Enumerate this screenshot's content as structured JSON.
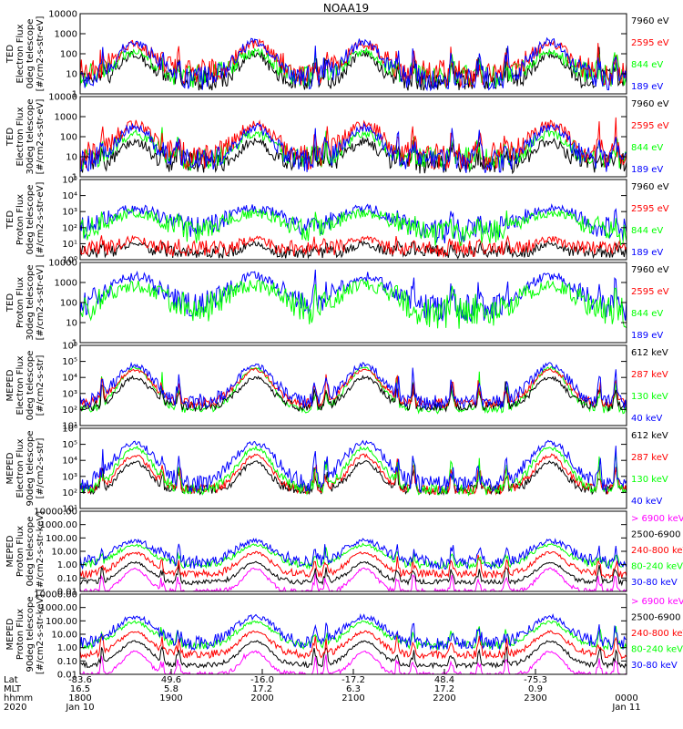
{
  "title": "NOAA19",
  "colors": {
    "blue": "#0000ff",
    "red": "#ff0000",
    "green": "#00ff00",
    "black": "#000000",
    "magenta": "#ff00ff"
  },
  "chart_data": [
    {
      "type": "scatter",
      "id": "ted-e-0",
      "ylabel": [
        "TED",
        "Electron Flux",
        "0deg telescope",
        "[#/cm2-s-str-eV]"
      ],
      "yscale": "log",
      "ylim": [
        1,
        10000
      ],
      "yticks": [
        "10000",
        "1000",
        "100",
        "10",
        "1"
      ],
      "legend": [
        {
          "label": "7960 eV",
          "color": "#000000"
        },
        {
          "label": "2595 eV",
          "color": "#ff0000"
        },
        {
          "label": "844 eV",
          "color": "#00ff00"
        },
        {
          "label": "189 eV",
          "color": "#0000ff"
        }
      ],
      "series": [
        {
          "name": "7960 eV",
          "color": "#000000",
          "peak": 100,
          "floor": 5,
          "widthScale": 0.8,
          "noise": 0.55
        },
        {
          "name": "844 eV",
          "color": "#00ff00",
          "peak": 120,
          "floor": 8,
          "widthScale": 1.0,
          "noise": 0.6
        },
        {
          "name": "2595 eV",
          "color": "#ff0000",
          "peak": 300,
          "floor": 10,
          "widthScale": 1.1,
          "noise": 0.7
        },
        {
          "name": "189 eV",
          "color": "#0000ff",
          "peak": 400,
          "floor": 6,
          "widthScale": 1.0,
          "noise": 0.6
        }
      ]
    },
    {
      "type": "scatter",
      "id": "ted-e-30",
      "ylabel": [
        "TED",
        "Electron Flux",
        "30deg telescope",
        "[#/cm2-s-str-eV]"
      ],
      "yscale": "log",
      "ylim": [
        1,
        10000
      ],
      "yticks": [
        "10000",
        "1000",
        "100",
        "10",
        "1"
      ],
      "legend": [
        {
          "label": "7960 eV",
          "color": "#000000"
        },
        {
          "label": "2595 eV",
          "color": "#ff0000"
        },
        {
          "label": "844 eV",
          "color": "#00ff00"
        },
        {
          "label": "189 eV",
          "color": "#0000ff"
        }
      ],
      "series": [
        {
          "name": "7960 eV",
          "color": "#000000",
          "peak": 60,
          "floor": 5,
          "widthScale": 0.8,
          "noise": 0.55
        },
        {
          "name": "844 eV",
          "color": "#00ff00",
          "peak": 150,
          "floor": 8,
          "widthScale": 1.0,
          "noise": 0.6
        },
        {
          "name": "2595 eV",
          "color": "#ff0000",
          "peak": 400,
          "floor": 10,
          "widthScale": 1.1,
          "noise": 0.7
        },
        {
          "name": "189 eV",
          "color": "#0000ff",
          "peak": 300,
          "floor": 6,
          "widthScale": 1.0,
          "noise": 0.6
        }
      ]
    },
    {
      "type": "scatter",
      "id": "ted-p-0",
      "ylabel": [
        "TED",
        "Proton Flux",
        "0deg telescope",
        "[#/cm2-s-str-eV]"
      ],
      "yscale": "log",
      "ylim": [
        1,
        100000
      ],
      "yticks": [
        "10⁵",
        "10⁴",
        "10³",
        "10²",
        "10¹",
        "10⁰"
      ],
      "legend": [
        {
          "label": "7960 eV",
          "color": "#000000"
        },
        {
          "label": "2595 eV",
          "color": "#ff0000"
        },
        {
          "label": "844 eV",
          "color": "#00ff00"
        },
        {
          "label": "189 eV",
          "color": "#0000ff"
        }
      ],
      "series": [
        {
          "name": "7960 eV",
          "color": "#000000",
          "peak": 10,
          "floor": 3,
          "widthScale": 0.6,
          "noise": 0.4
        },
        {
          "name": "2595 eV",
          "color": "#ff0000",
          "peak": 20,
          "floor": 5,
          "widthScale": 0.7,
          "noise": 0.5
        },
        {
          "name": "189 eV",
          "color": "#0000ff",
          "peak": 1500,
          "floor": 60,
          "widthScale": 1.6,
          "noise": 0.8
        },
        {
          "name": "844 eV",
          "color": "#00ff00",
          "peak": 800,
          "floor": 40,
          "widthScale": 1.6,
          "noise": 0.8
        }
      ]
    },
    {
      "type": "scatter",
      "id": "ted-p-30",
      "ylabel": [
        "TED",
        "Proton Flux",
        "30deg telescope",
        "[#/cm2-s-str-eV]"
      ],
      "yscale": "log",
      "ylim": [
        1,
        10000
      ],
      "yticks": [
        "10000",
        "1000",
        "100",
        "10",
        "1"
      ],
      "legend": [
        {
          "label": "7960 eV",
          "color": "#000000"
        },
        {
          "label": "2595 eV",
          "color": "#ff0000"
        },
        {
          "label": "844 eV",
          "color": "#00ff00"
        },
        {
          "label": "189 eV",
          "color": "#0000ff"
        }
      ],
      "series": [
        {
          "name": "189 eV",
          "color": "#0000ff",
          "peak": 2000,
          "floor": 50,
          "widthScale": 1.5,
          "noise": 0.7
        },
        {
          "name": "844 eV",
          "color": "#00ff00",
          "peak": 700,
          "floor": 30,
          "widthScale": 1.6,
          "noise": 0.9
        }
      ]
    },
    {
      "type": "scatter",
      "id": "meped-e-0",
      "ylabel": [
        "MEPED",
        "Electron Flux",
        "0deg telescope",
        "[#/cm2-s-str]"
      ],
      "yscale": "log",
      "ylim": [
        10,
        1000000
      ],
      "yticks": [
        "10⁶",
        "10⁵",
        "10⁴",
        "10³",
        "10²",
        "10¹"
      ],
      "legend": [
        {
          "label": "612 keV",
          "color": "#000000"
        },
        {
          "label": "287 keV",
          "color": "#ff0000"
        },
        {
          "label": "130 keV",
          "color": "#00ff00"
        },
        {
          "label": "40 keV",
          "color": "#0000ff"
        }
      ],
      "series": [
        {
          "name": "130 keV",
          "color": "#00ff00",
          "peak": 40000,
          "floor": 100,
          "widthScale": 0.95,
          "noise": 0.25
        },
        {
          "name": "612 keV",
          "color": "#000000",
          "peak": 10000,
          "floor": 150,
          "widthScale": 0.9,
          "noise": 0.3
        },
        {
          "name": "287 keV",
          "color": "#ff0000",
          "peak": 30000,
          "floor": 250,
          "widthScale": 1.0,
          "noise": 0.3
        },
        {
          "name": "40 keV",
          "color": "#0000ff",
          "peak": 60000,
          "floor": 300,
          "widthScale": 1.05,
          "noise": 0.5
        }
      ]
    },
    {
      "type": "scatter",
      "id": "meped-e-90",
      "ylabel": [
        "MEPED",
        "Electron Flux",
        "90deg telescope",
        "[#/cm2-s-str]"
      ],
      "yscale": "log",
      "ylim": [
        10,
        1000000
      ],
      "yticks": [
        "10⁶",
        "10⁵",
        "10⁴",
        "10³",
        "10²",
        "10¹"
      ],
      "legend": [
        {
          "label": "612 keV",
          "color": "#000000"
        },
        {
          "label": "287 keV",
          "color": "#ff0000"
        },
        {
          "label": "130 keV",
          "color": "#00ff00"
        },
        {
          "label": "40 keV",
          "color": "#0000ff"
        }
      ],
      "series": [
        {
          "name": "612 keV",
          "color": "#000000",
          "peak": 8000,
          "floor": 150,
          "widthScale": 0.8,
          "noise": 0.3
        },
        {
          "name": "287 keV",
          "color": "#ff0000",
          "peak": 20000,
          "floor": 150,
          "widthScale": 0.9,
          "noise": 0.3
        },
        {
          "name": "130 keV",
          "color": "#00ff00",
          "peak": 60000,
          "floor": 150,
          "widthScale": 1.0,
          "noise": 0.35
        },
        {
          "name": "40 keV",
          "color": "#0000ff",
          "peak": 120000,
          "floor": 300,
          "widthScale": 1.2,
          "noise": 0.55
        }
      ]
    },
    {
      "type": "scatter",
      "id": "meped-p-0",
      "ylabel": [
        "MEPED",
        "Proton Flux",
        "0deg telescope",
        "[#/cm2-s-str-keV]"
      ],
      "yscale": "log",
      "ylim": [
        0.01,
        10000
      ],
      "yticks": [
        "10000.00",
        "1000.00",
        "100.00",
        "10.00",
        "1.00",
        "0.10",
        "0.01"
      ],
      "legend": [
        {
          "label": "> 6900 keV",
          "color": "#ff00ff"
        },
        {
          "label": "2500-6900",
          "color": "#000000"
        },
        {
          "label": "240-800 keV",
          "color": "#ff0000"
        },
        {
          "label": "80-240 keV",
          "color": "#00ff00"
        },
        {
          "label": "30-80 keV",
          "color": "#0000ff"
        }
      ],
      "series": [
        {
          "name": "> 6900 keV",
          "color": "#ff00ff",
          "peak": 0.5,
          "floor": 0.01,
          "widthScale": 0.7,
          "noise": 0.2
        },
        {
          "name": "2500-6900",
          "color": "#000000",
          "peak": 1.5,
          "floor": 0.05,
          "widthScale": 0.8,
          "noise": 0.2
        },
        {
          "name": "240-800 keV",
          "color": "#ff0000",
          "peak": 8,
          "floor": 0.2,
          "widthScale": 0.9,
          "noise": 0.3
        },
        {
          "name": "80-240 keV",
          "color": "#00ff00",
          "peak": 30,
          "floor": 1,
          "widthScale": 1.0,
          "noise": 0.3
        },
        {
          "name": "30-80 keV",
          "color": "#0000ff",
          "peak": 60,
          "floor": 1.5,
          "widthScale": 1.1,
          "noise": 0.5
        }
      ]
    },
    {
      "type": "scatter",
      "id": "meped-p-90",
      "ylabel": [
        "MEPED",
        "Proton Flux",
        "90deg telescope",
        "[#/cm2-s-str-keV]"
      ],
      "yscale": "log",
      "ylim": [
        0.01,
        10000
      ],
      "yticks": [
        "10000.00",
        "1000.00",
        "100.00",
        "10.00",
        "1.00",
        "0.10",
        "0.01"
      ],
      "legend": [
        {
          "label": "> 6900 keV",
          "color": "#ff00ff"
        },
        {
          "label": "2500-6900",
          "color": "#000000"
        },
        {
          "label": "240-800 keV",
          "color": "#ff0000"
        },
        {
          "label": "80-240 keV",
          "color": "#00ff00"
        },
        {
          "label": "30-80 keV",
          "color": "#0000ff"
        }
      ],
      "series": [
        {
          "name": "> 6900 keV",
          "color": "#ff00ff",
          "peak": 0.5,
          "floor": 0.01,
          "widthScale": 0.7,
          "noise": 0.2
        },
        {
          "name": "2500-6900",
          "color": "#000000",
          "peak": 3,
          "floor": 0.05,
          "widthScale": 0.85,
          "noise": 0.2
        },
        {
          "name": "240-800 keV",
          "color": "#ff0000",
          "peak": 15,
          "floor": 0.3,
          "widthScale": 0.9,
          "noise": 0.3
        },
        {
          "name": "80-240 keV",
          "color": "#00ff00",
          "peak": 80,
          "floor": 1.5,
          "widthScale": 1.0,
          "noise": 0.3
        },
        {
          "name": "30-80 keV",
          "color": "#0000ff",
          "peak": 200,
          "floor": 2,
          "widthScale": 1.1,
          "noise": 0.5
        }
      ]
    }
  ],
  "passes": [
    {
      "center": 0.1,
      "width": 0.045
    },
    {
      "center": 0.32,
      "width": 0.045
    },
    {
      "center": 0.52,
      "width": 0.045
    },
    {
      "center": 0.86,
      "width": 0.045
    }
  ],
  "spikes": [
    0.04,
    0.15,
    0.18,
    0.3,
    0.43,
    0.45,
    0.58,
    0.61,
    0.68,
    0.73,
    0.78,
    0.95,
    0.98
  ],
  "xaxis": {
    "row_labels": [
      "Lat",
      "MLT",
      "hhmm",
      "2020"
    ],
    "ticks": [
      {
        "values": [
          "-83.6",
          "16.5",
          "1800",
          "Jan 10"
        ]
      },
      {
        "values": [
          "49.6",
          "5.8",
          "1900",
          ""
        ]
      },
      {
        "values": [
          "-16.0",
          "17.2",
          "2000",
          ""
        ]
      },
      {
        "values": [
          "-17.2",
          "6.3",
          "2100",
          ""
        ]
      },
      {
        "values": [
          "48.4",
          "17.2",
          "2200",
          ""
        ]
      },
      {
        "values": [
          "-75.3",
          "0.9",
          "2300",
          ""
        ]
      },
      {
        "values": [
          "",
          "",
          "0000",
          "Jan 11"
        ]
      }
    ]
  }
}
